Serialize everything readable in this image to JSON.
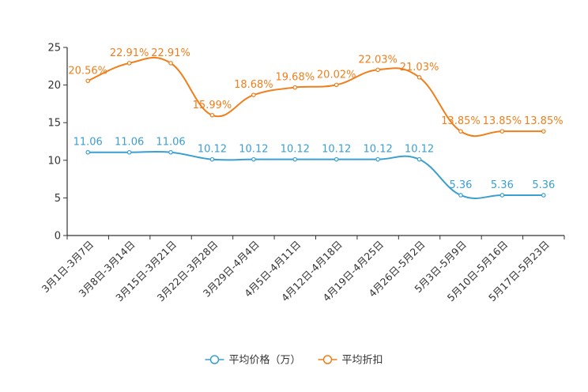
{
  "chart_data": {
    "type": "line",
    "title": "",
    "xlabel": "",
    "ylabel": "",
    "ylim": [
      0,
      25
    ],
    "yticks": [
      0,
      5,
      10,
      15,
      20,
      25
    ],
    "grid": false,
    "legend_position": "bottom-center",
    "categories": [
      "3月1日-3月7日",
      "3月8日-3月14日",
      "3月15日-3月21日",
      "3月22日-3月28日",
      "3月29日-4月4日",
      "4月5日-4月11日",
      "4月12日-4月18日",
      "4月19日-4月25日",
      "4月26日-5月2日",
      "5月3日-5月9日",
      "5月10日-5月16日",
      "5月17日-5月23日"
    ],
    "series": [
      {
        "name": "平均价格（万）",
        "color": "#3a9fd1",
        "values": [
          11.06,
          11.06,
          11.06,
          10.12,
          10.12,
          10.12,
          10.12,
          10.12,
          10.12,
          5.36,
          5.36,
          5.36
        ],
        "labels": [
          "11.06",
          "11.06",
          "11.06",
          "10.12",
          "10.12",
          "10.12",
          "10.12",
          "10.12",
          "10.12",
          "5.36",
          "5.36",
          "5.36"
        ]
      },
      {
        "name": "平均折扣",
        "color": "#f07f1b",
        "values": [
          20.56,
          22.91,
          22.91,
          15.99,
          18.68,
          19.68,
          20.02,
          22.03,
          21.03,
          13.85,
          13.85,
          13.85
        ],
        "labels": [
          "20.56%",
          "22.91%",
          "22.91%",
          "15.99%",
          "18.68%",
          "19.68%",
          "20.02%",
          "22.03%",
          "21.03%",
          "13.85%",
          "13.85%",
          "13.85%"
        ]
      }
    ]
  }
}
